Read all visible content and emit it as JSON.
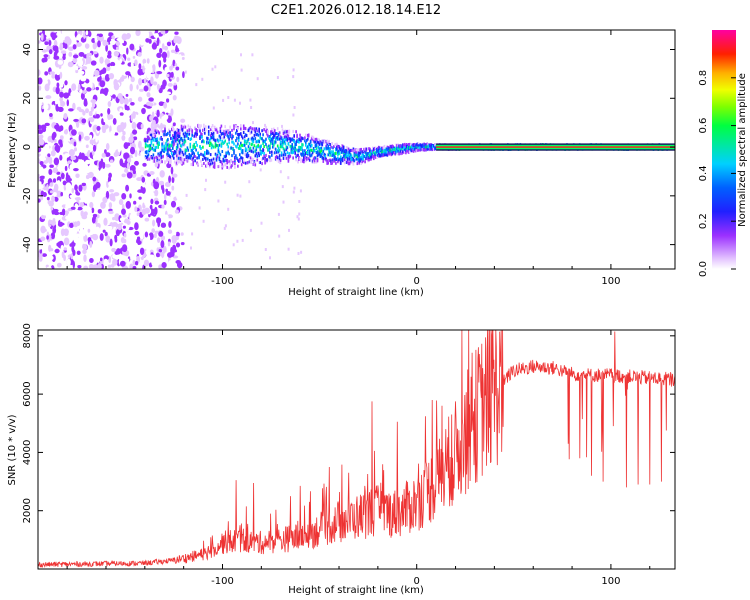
{
  "title": "C2E1.2026.012.18.14.E12",
  "chart_data": [
    {
      "type": "heatmap",
      "name": "spectrogram",
      "xlabel": "Height of straight line (km)",
      "ylabel": "Frequency (Hz)",
      "xlim": [
        -195,
        133
      ],
      "ylim": [
        -50,
        48
      ],
      "xticks": [
        -100,
        0,
        100
      ],
      "xtick_labels": [
        "-100",
        "0",
        "100"
      ],
      "yticks": [
        40,
        20,
        0,
        -20,
        -40
      ],
      "ytick_labels": [
        "40",
        "20",
        "0",
        "-20",
        "-40"
      ],
      "noise_region_x": [
        -195,
        -120
      ],
      "signal_start_x": -140,
      "trace_x": [
        -140,
        -120,
        -100,
        -80,
        -60,
        -40,
        -30,
        -20,
        -10,
        0,
        10,
        20,
        133
      ],
      "trace_hz": [
        0,
        1,
        0,
        1,
        0,
        -3,
        -4,
        -2,
        -1,
        0,
        0,
        0,
        0
      ],
      "trace_spread_hz": [
        6,
        8,
        9,
        8,
        6,
        4,
        3,
        2,
        2,
        1.5,
        1,
        1,
        1
      ]
    },
    {
      "type": "colorbar",
      "name": "amplitude-colorbar",
      "label": "Normalized spectral amplitude",
      "range": [
        0,
        1
      ],
      "ticks": [
        0.0,
        0.2,
        0.4,
        0.6,
        0.8
      ],
      "tick_labels": [
        "0.0",
        "0.2",
        "0.4",
        "0.6",
        "0.8"
      ]
    },
    {
      "type": "line",
      "name": "snr",
      "xlabel": "Height of straight line (km)",
      "ylabel": "SNR (10 * v/v)",
      "xlim": [
        -195,
        133
      ],
      "ylim": [
        0,
        8200
      ],
      "xticks": [
        -100,
        0,
        100
      ],
      "xtick_labels": [
        "-100",
        "0",
        "100"
      ],
      "yticks": [
        2000,
        4000,
        6000,
        8000
      ],
      "ytick_labels": [
        "2000",
        "4000",
        "6000",
        "8000"
      ],
      "color": "#ee3333",
      "envelope_x": [
        -195,
        -140,
        -125,
        -110,
        -100,
        -90,
        -80,
        -60,
        -40,
        -20,
        -10,
        0,
        10,
        20,
        30,
        40,
        50,
        60,
        70,
        80,
        90,
        100,
        110,
        120,
        133
      ],
      "envelope_y": [
        150,
        200,
        300,
        500,
        900,
        1000,
        900,
        1100,
        1600,
        2000,
        1900,
        2300,
        3000,
        4000,
        5200,
        6200,
        6800,
        6950,
        6900,
        6700,
        6650,
        6650,
        6600,
        6550,
        6500
      ],
      "spikes": [
        {
          "x": -93,
          "y": 3050
        },
        {
          "x": -84,
          "y": 2950
        },
        {
          "x": -65,
          "y": 2500
        },
        {
          "x": -60,
          "y": 2850
        },
        {
          "x": -45,
          "y": 3500
        },
        {
          "x": -35,
          "y": 3300
        },
        {
          "x": -23,
          "y": 5750
        },
        {
          "x": -10,
          "y": 5050
        },
        {
          "x": 8,
          "y": 5800
        },
        {
          "x": 13,
          "y": 5600
        },
        {
          "x": 18,
          "y": 5300
        },
        {
          "x": 102,
          "y": 8150
        },
        {
          "x": 78,
          "y": 4300
        },
        {
          "x": 84,
          "y": 3800
        },
        {
          "x": 90,
          "y": 3200
        },
        {
          "x": 96,
          "y": 3000
        },
        {
          "x": 108,
          "y": 2800
        },
        {
          "x": 114,
          "y": 2900
        },
        {
          "x": 120,
          "y": 2900
        },
        {
          "x": 126,
          "y": 3000
        }
      ]
    }
  ]
}
